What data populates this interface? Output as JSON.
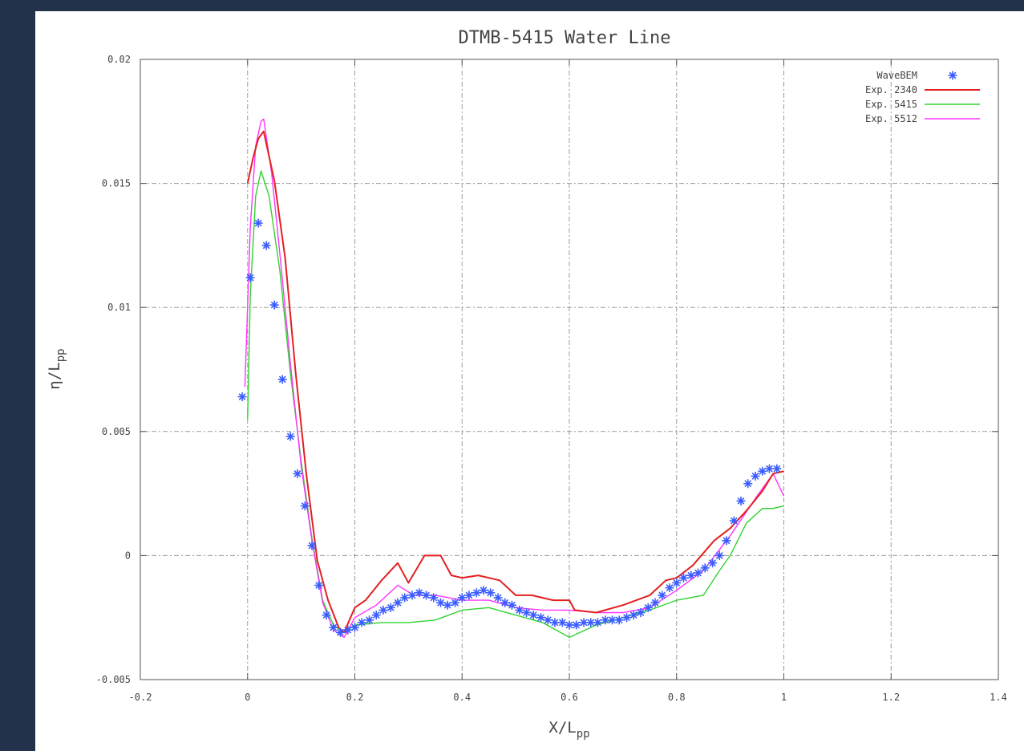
{
  "chart_data": {
    "type": "line",
    "title": "DTMB-5415 Water Line",
    "xlabel_main": "X/L",
    "xlabel_sub": "pp",
    "ylabel_main": "η/L",
    "ylabel_sub": "pp",
    "xlim": [
      -0.2,
      1.4
    ],
    "ylim": [
      -0.005,
      0.02
    ],
    "xticks": [
      -0.2,
      0,
      0.2,
      0.4,
      0.6,
      0.8,
      1,
      1.2,
      1.4
    ],
    "xtick_labels": [
      "-0.2",
      "0",
      "0.2",
      "0.4",
      "0.6",
      "0.8",
      "1",
      "1.2",
      "1.4"
    ],
    "yticks": [
      -0.005,
      0,
      0.005,
      0.01,
      0.015,
      0.02
    ],
    "ytick_labels": [
      "-0.005",
      "0",
      "0.005",
      "0.01",
      "0.015",
      "0.02"
    ],
    "grid": true,
    "legend_position": "top-right",
    "series": [
      {
        "name": "WaveBEM",
        "style": "markers",
        "marker": "*",
        "color": "#3a5cff",
        "x": [
          -0.01,
          0.005,
          0.02,
          0.035,
          0.05,
          0.065,
          0.08,
          0.093,
          0.107,
          0.12,
          0.133,
          0.147,
          0.16,
          0.173,
          0.187,
          0.2,
          0.213,
          0.227,
          0.24,
          0.253,
          0.267,
          0.28,
          0.293,
          0.307,
          0.32,
          0.333,
          0.347,
          0.36,
          0.373,
          0.387,
          0.4,
          0.413,
          0.427,
          0.44,
          0.453,
          0.467,
          0.48,
          0.493,
          0.507,
          0.52,
          0.533,
          0.547,
          0.56,
          0.573,
          0.587,
          0.6,
          0.613,
          0.627,
          0.64,
          0.653,
          0.667,
          0.68,
          0.693,
          0.707,
          0.72,
          0.733,
          0.747,
          0.76,
          0.773,
          0.787,
          0.8,
          0.813,
          0.827,
          0.84,
          0.853,
          0.867,
          0.88,
          0.893,
          0.907,
          0.92,
          0.933,
          0.947,
          0.96,
          0.973,
          0.987
        ],
        "y": [
          0.0064,
          0.0112,
          0.0134,
          0.0125,
          0.0101,
          0.0071,
          0.0048,
          0.0033,
          0.002,
          0.0004,
          -0.0012,
          -0.0024,
          -0.0029,
          -0.0031,
          -0.003,
          -0.0029,
          -0.0027,
          -0.0026,
          -0.0024,
          -0.0022,
          -0.0021,
          -0.0019,
          -0.0017,
          -0.0016,
          -0.0015,
          -0.0016,
          -0.0017,
          -0.0019,
          -0.002,
          -0.0019,
          -0.0017,
          -0.0016,
          -0.0015,
          -0.0014,
          -0.0015,
          -0.0017,
          -0.0019,
          -0.002,
          -0.0022,
          -0.0023,
          -0.0024,
          -0.0025,
          -0.0026,
          -0.0027,
          -0.0027,
          -0.0028,
          -0.0028,
          -0.0027,
          -0.0027,
          -0.0027,
          -0.0026,
          -0.0026,
          -0.0026,
          -0.0025,
          -0.0024,
          -0.0023,
          -0.0021,
          -0.0019,
          -0.0016,
          -0.0013,
          -0.0011,
          -0.0009,
          -0.0008,
          -0.0007,
          -0.0005,
          -0.0003,
          0.0,
          0.0006,
          0.0014,
          0.0022,
          0.0029,
          0.0032,
          0.0034,
          0.0035,
          0.0035
        ]
      },
      {
        "name": "Exp. 2340",
        "style": "line",
        "color": "#e32020",
        "width": 2,
        "x": [
          0.0,
          0.01,
          0.02,
          0.03,
          0.05,
          0.07,
          0.09,
          0.11,
          0.13,
          0.15,
          0.17,
          0.18,
          0.2,
          0.22,
          0.25,
          0.28,
          0.3,
          0.33,
          0.36,
          0.38,
          0.4,
          0.43,
          0.47,
          0.5,
          0.53,
          0.57,
          0.6,
          0.61,
          0.65,
          0.7,
          0.75,
          0.78,
          0.8,
          0.83,
          0.87,
          0.9,
          0.93,
          0.96,
          0.98,
          1.0
        ],
        "y": [
          0.015,
          0.016,
          0.0168,
          0.0171,
          0.0151,
          0.012,
          0.0073,
          0.0032,
          -0.0002,
          -0.0018,
          -0.0029,
          -0.0031,
          -0.0021,
          -0.0018,
          -0.001,
          -0.0003,
          -0.0011,
          0.0,
          0.0,
          -0.0008,
          -0.0009,
          -0.0008,
          -0.001,
          -0.0016,
          -0.0016,
          -0.0018,
          -0.0018,
          -0.0022,
          -0.0023,
          -0.002,
          -0.0016,
          -0.001,
          -0.0009,
          -0.0004,
          0.0006,
          0.0011,
          0.0018,
          0.0026,
          0.0033,
          0.0034
        ]
      },
      {
        "name": "Exp. 5415",
        "style": "line",
        "color": "#2fd32f",
        "width": 1.4,
        "x": [
          0.0,
          0.005,
          0.015,
          0.025,
          0.04,
          0.06,
          0.08,
          0.1,
          0.12,
          0.14,
          0.16,
          0.18,
          0.2,
          0.25,
          0.3,
          0.35,
          0.4,
          0.45,
          0.5,
          0.55,
          0.6,
          0.65,
          0.7,
          0.75,
          0.8,
          0.85,
          0.88,
          0.9,
          0.93,
          0.96,
          0.98,
          1.0
        ],
        "y": [
          0.0055,
          0.0105,
          0.0145,
          0.0155,
          0.0145,
          0.0115,
          0.0073,
          0.0038,
          0.0007,
          -0.0018,
          -0.0028,
          -0.0031,
          -0.0028,
          -0.0027,
          -0.0027,
          -0.0026,
          -0.0022,
          -0.0021,
          -0.0024,
          -0.0027,
          -0.0033,
          -0.0028,
          -0.0025,
          -0.0022,
          -0.0018,
          -0.0016,
          -0.0006,
          0.0,
          0.0013,
          0.0019,
          0.0019,
          0.002
        ]
      },
      {
        "name": "Exp. 5512",
        "style": "line",
        "color": "#ff33ff",
        "width": 1.4,
        "x": [
          -0.005,
          0.005,
          0.015,
          0.025,
          0.03,
          0.045,
          0.06,
          0.08,
          0.1,
          0.12,
          0.14,
          0.16,
          0.18,
          0.2,
          0.24,
          0.28,
          0.31,
          0.35,
          0.4,
          0.45,
          0.5,
          0.55,
          0.6,
          0.65,
          0.7,
          0.75,
          0.8,
          0.85,
          0.9,
          0.95,
          0.98,
          1.0
        ],
        "y": [
          0.0068,
          0.0132,
          0.0165,
          0.0175,
          0.0176,
          0.0154,
          0.0122,
          0.0077,
          0.0036,
          0.0006,
          -0.0019,
          -0.003,
          -0.0033,
          -0.0025,
          -0.002,
          -0.0012,
          -0.0016,
          -0.0016,
          -0.0018,
          -0.0018,
          -0.0021,
          -0.0022,
          -0.0022,
          -0.0023,
          -0.0023,
          -0.0021,
          -0.0014,
          -0.0006,
          0.0008,
          0.0024,
          0.0033,
          0.0024
        ]
      }
    ]
  }
}
